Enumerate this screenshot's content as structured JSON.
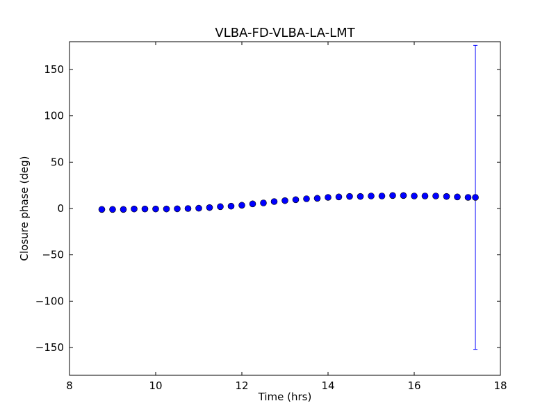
{
  "chart_data": {
    "type": "scatter",
    "title": "VLBA-FD-VLBA-LA-LMT",
    "xlabel": "Time (hrs)",
    "ylabel": "Closure phase (deg)",
    "xlim": [
      8,
      18
    ],
    "ylim": [
      -180,
      180
    ],
    "xticks": [
      8,
      10,
      12,
      14,
      16,
      18
    ],
    "xtick_labels": [
      "8",
      "10",
      "12",
      "14",
      "16",
      "18"
    ],
    "yticks": [
      -150,
      -100,
      -50,
      0,
      50,
      100,
      150
    ],
    "ytick_labels": [
      "−150",
      "−100",
      "−50",
      "0",
      "50",
      "100",
      "150"
    ],
    "grid": false,
    "marker_color": "#0000ff",
    "errorbar_color": "#0000ff",
    "x": [
      8.75,
      9.0,
      9.25,
      9.5,
      9.75,
      10.0,
      10.25,
      10.5,
      10.75,
      11.0,
      11.25,
      11.5,
      11.75,
      12.0,
      12.25,
      12.5,
      12.75,
      13.0,
      13.25,
      13.5,
      13.75,
      14.0,
      14.25,
      14.5,
      14.75,
      15.0,
      15.25,
      15.5,
      15.75,
      16.0,
      16.25,
      16.5,
      16.75,
      17.0,
      17.25,
      17.42
    ],
    "y": [
      -1,
      -1,
      -1,
      -0.5,
      -0.5,
      -0.5,
      -0.5,
      -0.3,
      0,
      0.3,
      1,
      2,
      2.5,
      3.5,
      5,
      6,
      7.5,
      8.5,
      9.5,
      10.5,
      11,
      12,
      12.5,
      13,
      13,
      13.5,
      13.5,
      14,
      14,
      13.5,
      13.5,
      13.5,
      13,
      12.5,
      12,
      12
    ],
    "yerr": [
      0,
      0,
      0,
      0,
      0,
      0,
      0,
      0,
      0,
      0,
      0,
      0,
      0,
      0,
      0,
      0,
      0,
      0,
      0,
      0,
      0,
      0,
      0,
      0,
      0,
      0,
      0,
      0,
      0,
      0,
      0,
      0,
      0,
      0,
      0,
      164
    ]
  }
}
